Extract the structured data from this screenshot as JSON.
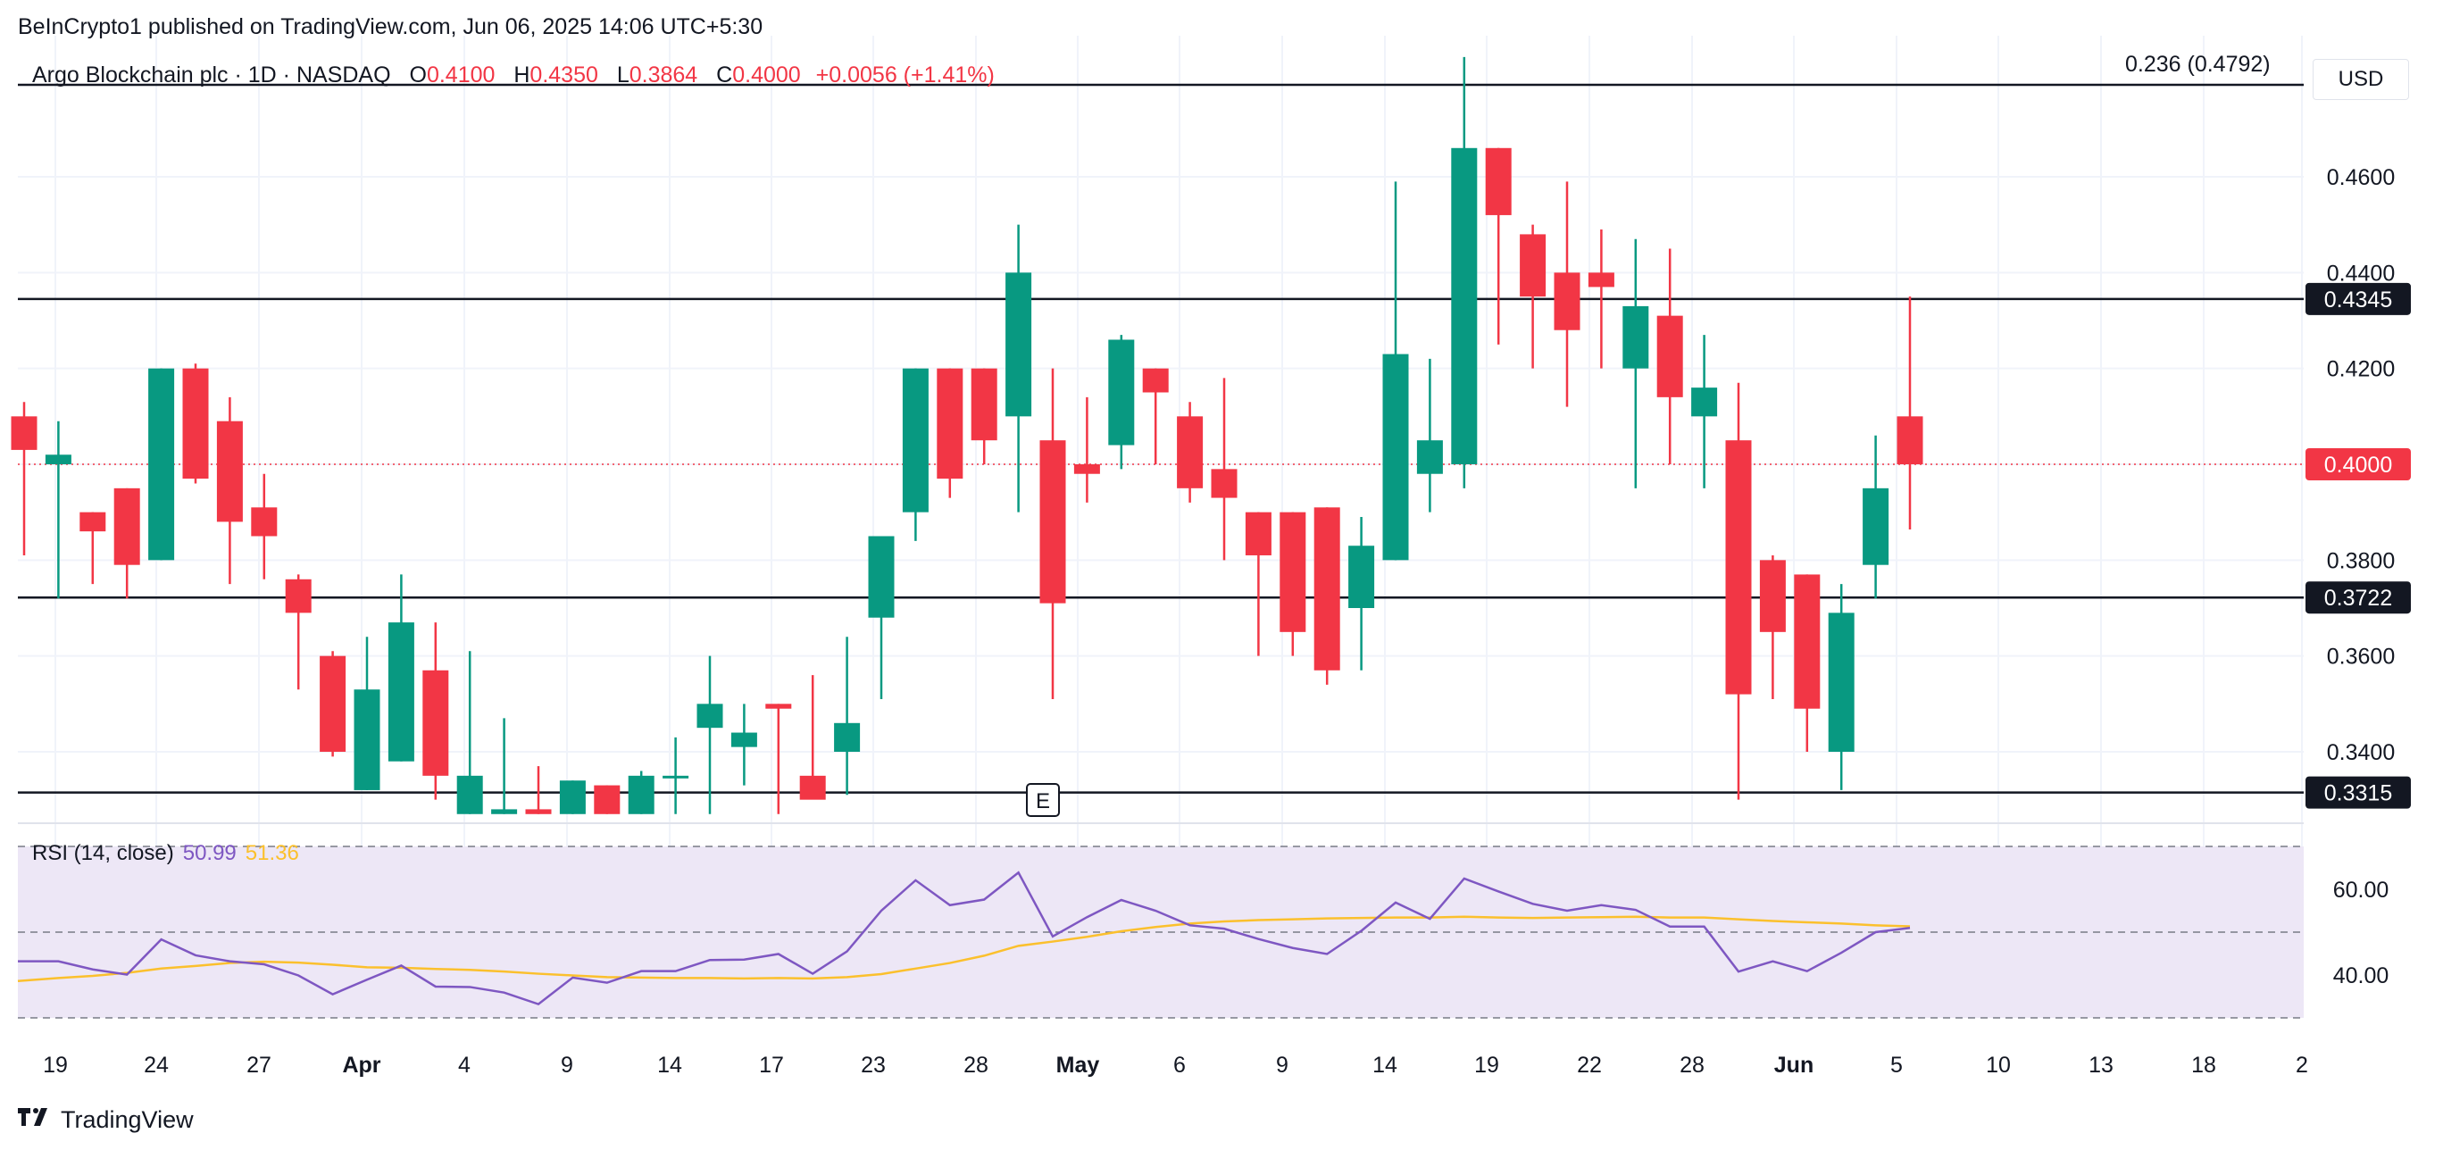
{
  "header": {
    "published": "BeInCrypto1 published on TradingView.com, Jun 06, 2025 14:06 UTC+5:30"
  },
  "legend": {
    "symbol": "Argo Blockchain plc · 1D · NASDAQ",
    "open_label": "O",
    "open": "0.4100",
    "high_label": "H",
    "high": "0.4350",
    "low_label": "L",
    "low": "0.3864",
    "close_label": "C",
    "close": "0.4000",
    "change": "+0.0056 (+1.41%)"
  },
  "currency": "USD",
  "fib_label": "0.236 (0.4792)",
  "rsi_legend": {
    "label": "RSI (14, close)",
    "rsi_value": "50.99",
    "ma_value": "51.36"
  },
  "footer": {
    "brand": "TradingView"
  },
  "colors": {
    "up": "#089981",
    "down": "#f23645",
    "rsi": "#7e57c2",
    "rsi_ma": "#fbc02d",
    "rsi_band": "#ede7f6"
  },
  "chart_data": {
    "type": "candlestick",
    "price_axis": {
      "ylim": [
        0.33,
        0.485
      ],
      "ticks": [
        "0.4600",
        "0.4400",
        "0.4200",
        "0.3800",
        "0.3600",
        "0.3400"
      ]
    },
    "horizontal_levels": [
      {
        "value": 0.4792,
        "label": ""
      },
      {
        "value": 0.4345,
        "label": "0.4345"
      },
      {
        "value": 0.3722,
        "label": "0.3722"
      },
      {
        "value": 0.3315,
        "label": "0.3315"
      }
    ],
    "last_price": {
      "value": 0.4,
      "label": "0.4000"
    },
    "earnings_marker": "E",
    "x_ticks": [
      "19",
      "24",
      "27",
      "Apr",
      "4",
      "9",
      "14",
      "17",
      "23",
      "28",
      "May",
      "6",
      "9",
      "14",
      "19",
      "22",
      "28",
      "Jun",
      "5",
      "10",
      "13",
      "18",
      "2"
    ],
    "candles": [
      {
        "o": 0.41,
        "h": 0.413,
        "l": 0.381,
        "c": 0.403
      },
      {
        "o": 0.4,
        "h": 0.409,
        "l": 0.372,
        "c": 0.402
      },
      {
        "o": 0.39,
        "h": 0.39,
        "l": 0.375,
        "c": 0.386
      },
      {
        "o": 0.395,
        "h": 0.395,
        "l": 0.372,
        "c": 0.379
      },
      {
        "o": 0.38,
        "h": 0.42,
        "l": 0.38,
        "c": 0.42
      },
      {
        "o": 0.42,
        "h": 0.421,
        "l": 0.396,
        "c": 0.397
      },
      {
        "o": 0.409,
        "h": 0.414,
        "l": 0.375,
        "c": 0.388
      },
      {
        "o": 0.391,
        "h": 0.398,
        "l": 0.376,
        "c": 0.385
      },
      {
        "o": 0.376,
        "h": 0.377,
        "l": 0.353,
        "c": 0.369
      },
      {
        "o": 0.36,
        "h": 0.361,
        "l": 0.339,
        "c": 0.34
      },
      {
        "o": 0.332,
        "h": 0.364,
        "l": 0.332,
        "c": 0.353
      },
      {
        "o": 0.338,
        "h": 0.377,
        "l": 0.338,
        "c": 0.367
      },
      {
        "o": 0.357,
        "h": 0.367,
        "l": 0.33,
        "c": 0.335
      },
      {
        "o": 0.326,
        "h": 0.361,
        "l": 0.326,
        "c": 0.335
      },
      {
        "o": 0.326,
        "h": 0.347,
        "l": 0.326,
        "c": 0.328
      },
      {
        "o": 0.328,
        "h": 0.337,
        "l": 0.326,
        "c": 0.326
      },
      {
        "o": 0.326,
        "h": 0.334,
        "l": 0.326,
        "c": 0.334
      },
      {
        "o": 0.333,
        "h": 0.333,
        "l": 0.326,
        "c": 0.326
      },
      {
        "o": 0.326,
        "h": 0.336,
        "l": 0.326,
        "c": 0.335
      },
      {
        "o": 0.335,
        "h": 0.343,
        "l": 0.327,
        "c": 0.335
      },
      {
        "o": 0.345,
        "h": 0.36,
        "l": 0.327,
        "c": 0.35
      },
      {
        "o": 0.341,
        "h": 0.35,
        "l": 0.333,
        "c": 0.344
      },
      {
        "o": 0.35,
        "h": 0.35,
        "l": 0.326,
        "c": 0.349
      },
      {
        "o": 0.335,
        "h": 0.356,
        "l": 0.331,
        "c": 0.33
      },
      {
        "o": 0.34,
        "h": 0.364,
        "l": 0.331,
        "c": 0.346
      },
      {
        "o": 0.368,
        "h": 0.385,
        "l": 0.351,
        "c": 0.385
      },
      {
        "o": 0.39,
        "h": 0.42,
        "l": 0.384,
        "c": 0.42
      },
      {
        "o": 0.42,
        "h": 0.42,
        "l": 0.393,
        "c": 0.397
      },
      {
        "o": 0.42,
        "h": 0.42,
        "l": 0.4,
        "c": 0.405
      },
      {
        "o": 0.41,
        "h": 0.45,
        "l": 0.39,
        "c": 0.44
      },
      {
        "o": 0.405,
        "h": 0.42,
        "l": 0.351,
        "c": 0.371
      },
      {
        "o": 0.4,
        "h": 0.414,
        "l": 0.392,
        "c": 0.398
      },
      {
        "o": 0.404,
        "h": 0.427,
        "l": 0.399,
        "c": 0.426
      },
      {
        "o": 0.42,
        "h": 0.42,
        "l": 0.4,
        "c": 0.415
      },
      {
        "o": 0.41,
        "h": 0.413,
        "l": 0.392,
        "c": 0.395
      },
      {
        "o": 0.399,
        "h": 0.418,
        "l": 0.38,
        "c": 0.393
      },
      {
        "o": 0.39,
        "h": 0.39,
        "l": 0.36,
        "c": 0.381
      },
      {
        "o": 0.39,
        "h": 0.39,
        "l": 0.36,
        "c": 0.365
      },
      {
        "o": 0.391,
        "h": 0.391,
        "l": 0.354,
        "c": 0.357
      },
      {
        "o": 0.37,
        "h": 0.389,
        "l": 0.357,
        "c": 0.383
      },
      {
        "o": 0.38,
        "h": 0.459,
        "l": 0.38,
        "c": 0.423
      },
      {
        "o": 0.398,
        "h": 0.422,
        "l": 0.39,
        "c": 0.405
      },
      {
        "o": 0.4,
        "h": 0.485,
        "l": 0.395,
        "c": 0.466
      },
      {
        "o": 0.466,
        "h": 0.466,
        "l": 0.425,
        "c": 0.452
      },
      {
        "o": 0.448,
        "h": 0.45,
        "l": 0.42,
        "c": 0.435
      },
      {
        "o": 0.44,
        "h": 0.459,
        "l": 0.412,
        "c": 0.428
      },
      {
        "o": 0.44,
        "h": 0.449,
        "l": 0.42,
        "c": 0.437
      },
      {
        "o": 0.42,
        "h": 0.447,
        "l": 0.395,
        "c": 0.433
      },
      {
        "o": 0.431,
        "h": 0.445,
        "l": 0.4,
        "c": 0.414
      },
      {
        "o": 0.41,
        "h": 0.427,
        "l": 0.395,
        "c": 0.416
      },
      {
        "o": 0.405,
        "h": 0.417,
        "l": 0.33,
        "c": 0.352
      },
      {
        "o": 0.38,
        "h": 0.381,
        "l": 0.351,
        "c": 0.365
      },
      {
        "o": 0.377,
        "h": 0.377,
        "l": 0.34,
        "c": 0.349
      },
      {
        "o": 0.34,
        "h": 0.375,
        "l": 0.332,
        "c": 0.369
      },
      {
        "o": 0.379,
        "h": 0.406,
        "l": 0.372,
        "c": 0.395
      },
      {
        "o": 0.41,
        "h": 0.435,
        "l": 0.3864,
        "c": 0.4
      }
    ],
    "rsi": {
      "ylim": [
        25,
        75
      ],
      "bands": [
        30,
        70
      ],
      "ticks": [
        "60.00",
        "40.00"
      ],
      "values": [
        43.2,
        43.2,
        41.3,
        40.1,
        48.3,
        44.6,
        43.2,
        42.5,
        39.9,
        35.5,
        38.9,
        42.2,
        37.3,
        37.2,
        35.9,
        33.2,
        39.4,
        38.2,
        40.9,
        40.9,
        43.5,
        43.6,
        44.9,
        40.3,
        45.5,
        55.0,
        62.1,
        56.3,
        57.6,
        63.9,
        49.0,
        53.5,
        57.5,
        55.0,
        51.6,
        50.8,
        48.4,
        46.3,
        44.9,
        50.3,
        56.9,
        53.1,
        62.5,
        59.5,
        56.6,
        55.0,
        56.3,
        55.2,
        51.3,
        51.3,
        40.8,
        43.2,
        40.9,
        45.2,
        50.0,
        50.99
      ],
      "ma": [
        38.6,
        39.3,
        39.8,
        40.5,
        41.5,
        42.1,
        42.8,
        43.1,
        42.9,
        42.4,
        41.8,
        41.7,
        41.4,
        41.2,
        40.8,
        40.3,
        39.9,
        39.5,
        39.4,
        39.3,
        39.3,
        39.2,
        39.3,
        39.2,
        39.5,
        40.2,
        41.5,
        42.8,
        44.5,
        46.8,
        47.8,
        48.9,
        50.2,
        51.2,
        52.0,
        52.5,
        52.8,
        53.0,
        53.2,
        53.3,
        53.4,
        53.4,
        53.6,
        53.4,
        53.3,
        53.4,
        53.5,
        53.6,
        53.4,
        53.4,
        53.0,
        52.6,
        52.3,
        52.0,
        51.6,
        51.36
      ]
    }
  }
}
